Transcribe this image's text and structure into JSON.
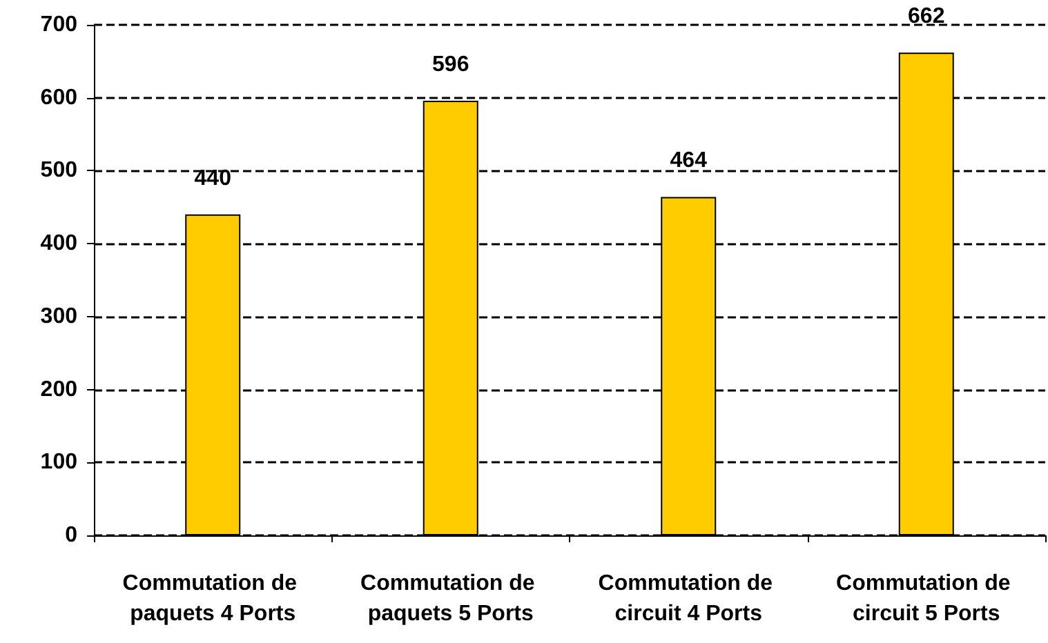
{
  "chart_data": {
    "type": "bar",
    "categories": [
      "Commutation de paquets 4 Ports",
      "Commutation de paquets 5 Ports",
      "Commutation de circuit 4 Ports",
      "Commutation de circuit 5 Ports"
    ],
    "values": [
      440,
      596,
      464,
      662
    ],
    "color": "#ffcc00",
    "ylim": [
      0,
      700
    ],
    "yticks": [
      0,
      100,
      200,
      300,
      400,
      500,
      600,
      700
    ],
    "grid": "y",
    "data_labels": true
  }
}
